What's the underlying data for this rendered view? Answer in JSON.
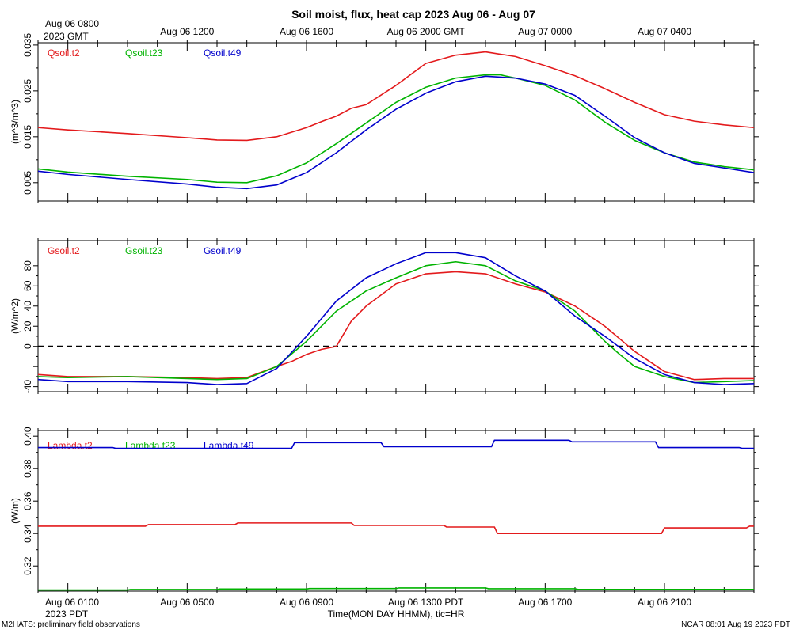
{
  "title": "Soil moist, flux, heat cap 2023 Aug 06 - Aug 07",
  "footer_left": "M2HATS: preliminary field observations",
  "footer_right": "NCAR 08:01 Aug 19 2023 PDT",
  "x_axis_label": "Time(MON DAY HHMM), tic=HR",
  "top_time_labels": [
    {
      "text": "Aug 06 0800",
      "hour": 0
    },
    {
      "text": "2023 GMT",
      "hour": 0
    },
    {
      "text": "Aug 06 1200",
      "hour": 4
    },
    {
      "text": "Aug 06 1600",
      "hour": 8
    },
    {
      "text": "Aug 06 2000 GMT",
      "hour": 12
    },
    {
      "text": "Aug 07 0000",
      "hour": 16
    },
    {
      "text": "Aug 07 0400",
      "hour": 20
    }
  ],
  "bottom_time_labels": [
    {
      "text": "Aug 06 0100",
      "hour": 0
    },
    {
      "text": "2023 PDT",
      "hour": 0
    },
    {
      "text": "Aug 06 0500",
      "hour": 4
    },
    {
      "text": "Aug 06 0900",
      "hour": 8
    },
    {
      "text": "Aug 06 1300 PDT",
      "hour": 12
    },
    {
      "text": "Aug 06 1700",
      "hour": 16
    },
    {
      "text": "Aug 06 2100",
      "hour": 20
    }
  ],
  "chart_data": [
    {
      "type": "line",
      "ylabel": "(m^3/m^3)",
      "ylim": [
        0.001,
        0.0355
      ],
      "yticks": [
        0.005,
        0.015,
        0.025,
        0.035
      ],
      "ytick_labels": [
        "0.005",
        "0.015",
        "0.025",
        "0.035"
      ],
      "xlim": [
        -1,
        23
      ],
      "series": [
        {
          "name": "Qsoil.t2",
          "color": "#e31a1c",
          "x": [
            -1,
            0,
            2,
            4,
            5,
            6,
            7,
            8,
            8.5,
            9,
            9.5,
            10,
            11,
            12,
            13,
            14,
            15,
            16,
            17,
            18,
            19,
            20,
            21,
            22,
            23
          ],
          "y": [
            0.017,
            0.0165,
            0.0157,
            0.0148,
            0.0143,
            0.0142,
            0.015,
            0.017,
            0.0183,
            0.0195,
            0.0212,
            0.022,
            0.0262,
            0.031,
            0.0328,
            0.0335,
            0.0325,
            0.0305,
            0.0283,
            0.0255,
            0.0225,
            0.0198,
            0.0184,
            0.0176,
            0.017
          ]
        },
        {
          "name": "Qsoil.t23",
          "color": "#00b300",
          "x": [
            -1,
            0,
            2,
            4,
            5,
            6,
            7,
            8,
            9,
            10,
            11,
            12,
            13,
            14,
            14.5,
            15,
            16,
            17,
            18,
            19,
            20,
            21,
            22,
            23
          ],
          "y": [
            0.008,
            0.0073,
            0.0064,
            0.0057,
            0.0051,
            0.005,
            0.0065,
            0.0093,
            0.0135,
            0.018,
            0.0225,
            0.0258,
            0.0278,
            0.0285,
            0.0285,
            0.0278,
            0.0262,
            0.023,
            0.0182,
            0.0142,
            0.0115,
            0.0095,
            0.0085,
            0.0078
          ]
        },
        {
          "name": "Qsoil.t49",
          "color": "#0000cc",
          "x": [
            -1,
            0,
            2,
            4,
            5,
            6,
            7,
            8,
            9,
            10,
            11,
            12,
            13,
            14,
            15,
            16,
            17,
            18,
            19,
            20,
            21,
            22,
            23
          ],
          "y": [
            0.0075,
            0.0068,
            0.0057,
            0.0047,
            0.004,
            0.0037,
            0.0045,
            0.0072,
            0.0115,
            0.0165,
            0.021,
            0.0245,
            0.027,
            0.0282,
            0.0278,
            0.0265,
            0.024,
            0.0195,
            0.0148,
            0.0115,
            0.0092,
            0.0082,
            0.0072
          ]
        }
      ]
    },
    {
      "type": "line",
      "ylabel": "(W/m^2)",
      "ylim": [
        -45,
        105
      ],
      "yticks": [
        -40,
        -20,
        0,
        20,
        40,
        60,
        80
      ],
      "ytick_labels": [
        "-40",
        "",
        "0",
        "20",
        "40",
        "60",
        "80"
      ],
      "xlim": [
        -1,
        23
      ],
      "reference_line": {
        "y": 0,
        "style": "dashed"
      },
      "series": [
        {
          "name": "Gsoil.t2",
          "color": "#e31a1c",
          "x": [
            -1,
            0,
            2,
            4,
            5,
            6,
            7,
            7.5,
            8,
            8.5,
            9,
            9.5,
            10,
            11,
            12,
            13,
            14,
            15,
            16,
            17,
            18,
            19,
            20,
            21,
            22,
            23
          ],
          "y": [
            -28,
            -30,
            -30,
            -31,
            -32,
            -31,
            -20,
            -15,
            -8,
            -3,
            0,
            25,
            40,
            62,
            72,
            74,
            72,
            62,
            54,
            40,
            20,
            -5,
            -25,
            -33,
            -32,
            -32
          ]
        },
        {
          "name": "Gsoil.t23",
          "color": "#00b300",
          "x": [
            -1,
            0,
            2,
            4,
            5,
            6,
            7,
            8,
            9,
            10,
            11,
            12,
            13,
            14,
            15,
            16,
            17,
            18,
            18.5,
            19,
            20,
            21,
            22,
            23
          ],
          "y": [
            -30,
            -31,
            -30,
            -32,
            -33,
            -32,
            -20,
            5,
            35,
            55,
            68,
            80,
            84,
            80,
            65,
            55,
            35,
            5,
            -8,
            -20,
            -30,
            -36,
            -35,
            -34
          ]
        },
        {
          "name": "Gsoil.t49",
          "color": "#0000cc",
          "x": [
            -1,
            0,
            2,
            4,
            5,
            6,
            7,
            8,
            9,
            10,
            11,
            12,
            13,
            14,
            15,
            16,
            17,
            18,
            19,
            20,
            21,
            22,
            23
          ],
          "y": [
            -33,
            -35,
            -35,
            -36,
            -38,
            -37,
            -22,
            10,
            45,
            68,
            82,
            93,
            93,
            88,
            70,
            55,
            30,
            10,
            -12,
            -28,
            -36,
            -38,
            -37
          ]
        }
      ]
    },
    {
      "type": "line",
      "ylabel": "(W/m)",
      "ylim": [
        0.3045,
        0.4035
      ],
      "yticks": [
        0.32,
        0.34,
        0.36,
        0.38,
        0.4
      ],
      "ytick_labels": [
        "0.32",
        "0.34",
        "0.36",
        "0.38",
        "0.40"
      ],
      "xlim": [
        -1,
        23
      ],
      "series": [
        {
          "name": "Lambda.t2",
          "color": "#e31a1c",
          "x": [
            -1,
            2.6,
            2.7,
            5.6,
            5.7,
            9.5,
            9.6,
            12.6,
            12.7,
            14.3,
            14.4,
            19.9,
            20.0,
            22.75,
            22.85,
            23
          ],
          "y": [
            0.3445,
            0.3445,
            0.3455,
            0.3455,
            0.3465,
            0.3465,
            0.345,
            0.345,
            0.344,
            0.344,
            0.34,
            0.34,
            0.3435,
            0.3435,
            0.3445,
            0.3445
          ]
        },
        {
          "name": "Lambda.t23",
          "color": "#00b300",
          "x": [
            -1,
            2.0,
            2.1,
            5.0,
            5.1,
            8.0,
            8.1,
            11.0,
            11.1,
            14.0,
            14.1,
            17.0,
            17.1,
            23
          ],
          "y": [
            0.3052,
            0.3052,
            0.3055,
            0.3055,
            0.3058,
            0.3058,
            0.3061,
            0.3061,
            0.3065,
            0.3065,
            0.306,
            0.306,
            0.3056,
            0.3056
          ]
        },
        {
          "name": "Lambda.t49",
          "color": "#0000cc",
          "x": [
            -1,
            1.5,
            1.6,
            7.5,
            7.6,
            10.5,
            10.6,
            14.2,
            14.3,
            16.8,
            16.9,
            19.7,
            19.8,
            22.5,
            22.6,
            23
          ],
          "y": [
            0.393,
            0.393,
            0.3925,
            0.3925,
            0.396,
            0.396,
            0.3935,
            0.3935,
            0.3975,
            0.3975,
            0.3965,
            0.3965,
            0.393,
            0.393,
            0.3925,
            0.3925
          ]
        }
      ]
    }
  ]
}
